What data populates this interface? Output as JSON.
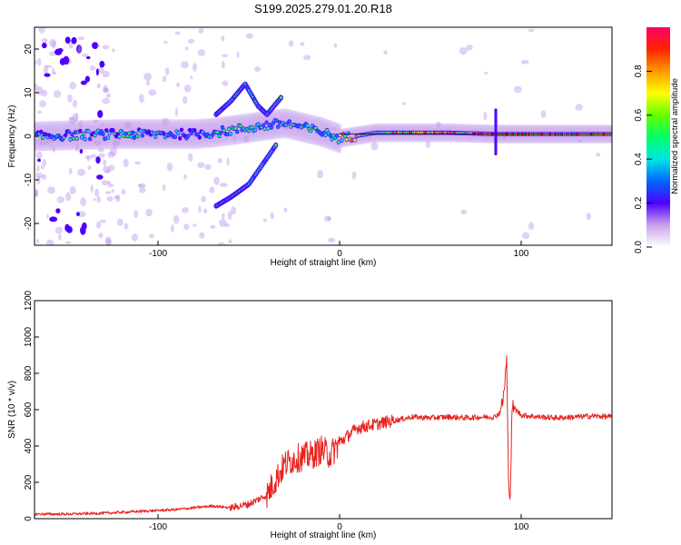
{
  "title": "S199.2025.279.01.20.R18",
  "chart_data": [
    {
      "type": "heatmap",
      "xlabel": "Height of straight line (km)",
      "ylabel": "Frequency (Hz)",
      "xlim": [
        -168,
        150
      ],
      "ylim": [
        -25,
        25
      ],
      "xticks": [
        -100,
        0,
        100
      ],
      "yticks": [
        -20,
        -10,
        0,
        10,
        20
      ],
      "colorbar": {
        "label": "Normalized spectral amplitude",
        "ticks": [
          0.0,
          0.2,
          0.4,
          0.6,
          0.8
        ],
        "range": [
          0,
          1
        ]
      },
      "features": [
        {
          "name": "main-band",
          "x": [
            -168,
            -120,
            -80,
            -70,
            -30,
            -10,
            0,
            20,
            60,
            85,
            100,
            150
          ],
          "y": [
            0,
            0.5,
            0.5,
            0.8,
            3,
            1,
            -0.5,
            0.8,
            0.8,
            0.5,
            0.5,
            0.5
          ]
        },
        {
          "name": "rising-branch",
          "x": [
            -68,
            -60,
            -50,
            -40,
            -35
          ],
          "y": [
            -16,
            -14,
            -11,
            -5,
            -2
          ]
        },
        {
          "name": "upper-branch",
          "x": [
            -68,
            -60,
            -52,
            -45,
            -40,
            -32
          ],
          "y": [
            5,
            8,
            12,
            7,
            5,
            9
          ]
        }
      ]
    },
    {
      "type": "line",
      "xlabel": "Height of straight line (km)",
      "ylabel": "SNR (10 * v/v)",
      "xlim": [
        -168,
        150
      ],
      "ylim": [
        0,
        1200
      ],
      "xticks": [
        -100,
        0,
        100
      ],
      "yticks": [
        0,
        200,
        400,
        600,
        800,
        1000,
        1200
      ],
      "color": "#e8231f",
      "x": [
        -168,
        -150,
        -130,
        -110,
        -90,
        -70,
        -60,
        -50,
        -40,
        -35,
        -30,
        -25,
        -20,
        -15,
        -10,
        -5,
        0,
        5,
        10,
        20,
        30,
        40,
        50,
        60,
        70,
        80,
        85,
        88,
        90,
        91,
        92,
        93,
        94,
        95,
        100,
        110,
        120,
        130,
        140,
        150
      ],
      "y": [
        25,
        25,
        30,
        40,
        50,
        70,
        60,
        80,
        130,
        220,
        300,
        330,
        340,
        350,
        380,
        350,
        420,
        460,
        500,
        520,
        540,
        560,
        555,
        560,
        555,
        560,
        560,
        580,
        650,
        750,
        880,
        200,
        130,
        620,
        570,
        560,
        555,
        560,
        565,
        560
      ]
    }
  ]
}
